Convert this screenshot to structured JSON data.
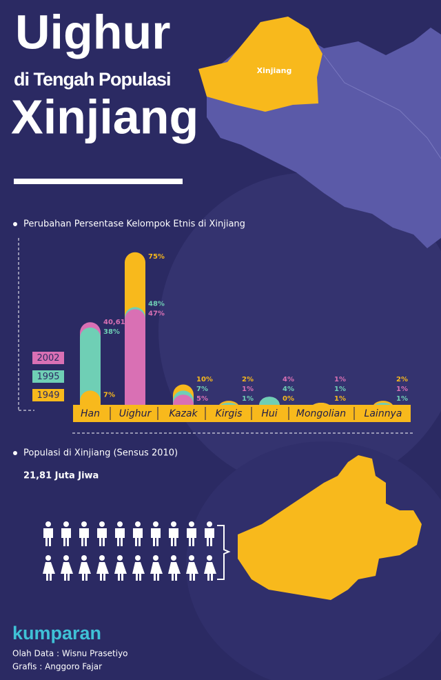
{
  "title": [
    "Uighur",
    "di Tengah Populasi",
    "Xinjiang"
  ],
  "map_label": "Xinjiang",
  "chart_data": {
    "type": "bar",
    "title": "Perubahan Persentase Kelompok Etnis di  Xinjiang",
    "categories": [
      "Han",
      "Uighur",
      "Kazak",
      "Kirgis",
      "Hui",
      "Mongolian",
      "Lainnya"
    ],
    "series": [
      {
        "name": "2002",
        "color": "#d970b4",
        "values": [
          40.61,
          47,
          5,
          1,
          4,
          1,
          1
        ],
        "value_labels": [
          "40,61%",
          "47%",
          "5%",
          "1%",
          "4%",
          "1%",
          "1%"
        ]
      },
      {
        "name": "1995",
        "color": "#6fcfb5",
        "values": [
          38,
          48,
          7,
          1,
          4,
          1,
          1
        ],
        "value_labels": [
          "38%",
          "48%",
          "7%",
          "1%",
          "4%",
          "1%",
          "1%"
        ]
      },
      {
        "name": "1949",
        "color": "#f8b91c",
        "values": [
          7,
          75,
          10,
          2,
          0,
          1,
          2
        ],
        "value_labels": [
          "7%",
          "75%",
          "10%",
          "2%",
          "0%",
          "1%",
          "2%"
        ]
      }
    ]
  },
  "population": {
    "title": "Populasi di Xinjiang (Sensus 2010)",
    "value": "21,81 Juta Jiwa"
  },
  "credits": {
    "logo": "kumparan",
    "data": "Olah Data : Wisnu Prasetiyo",
    "graphics": "Grafis : Anggoro Fajar"
  }
}
